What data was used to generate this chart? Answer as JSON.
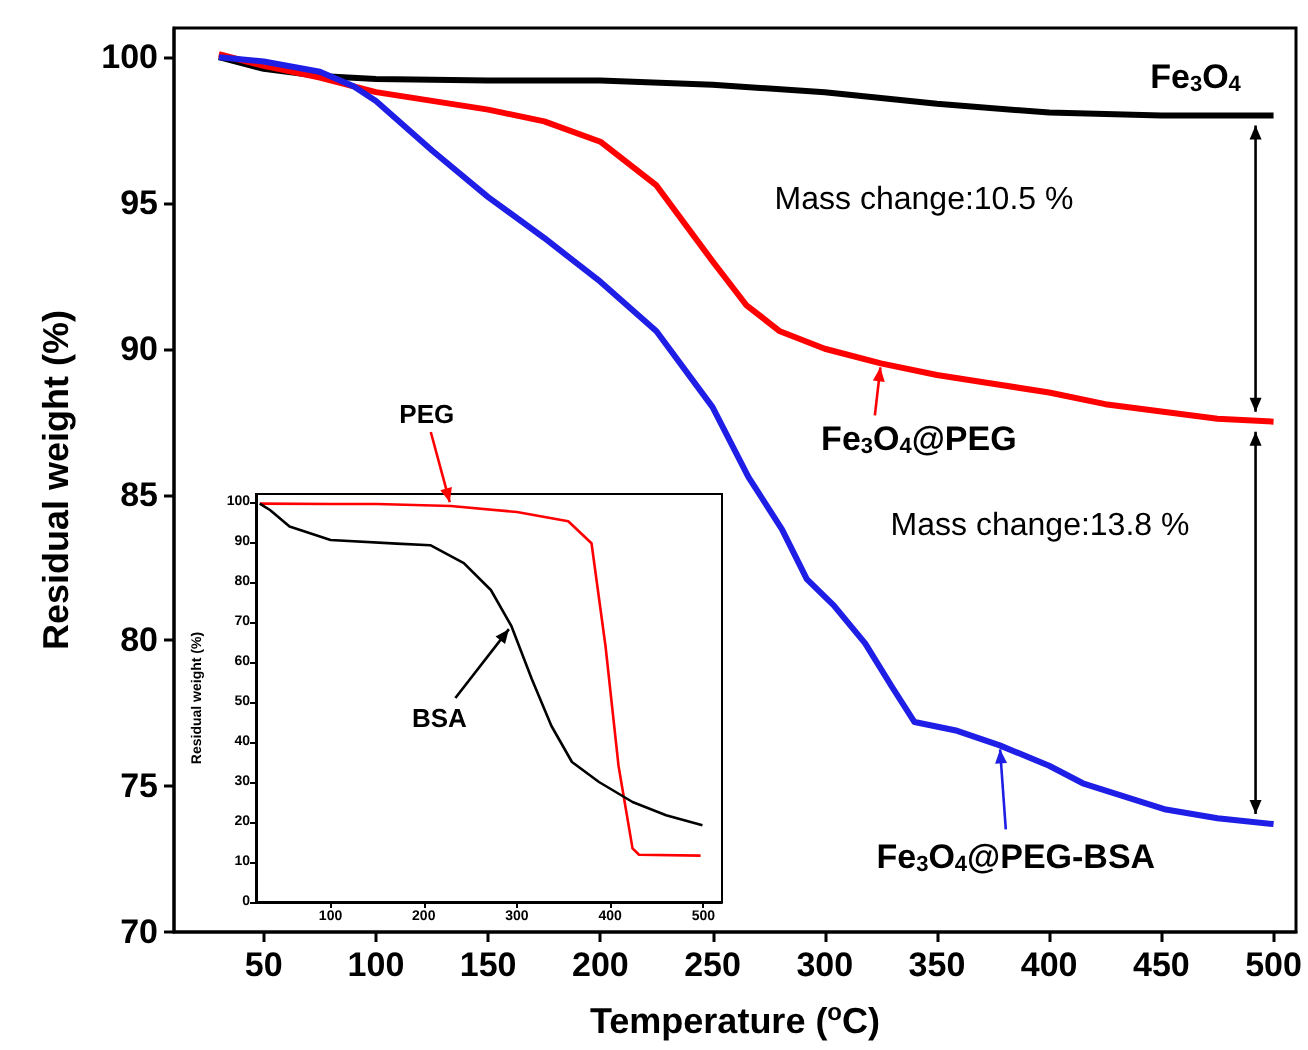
{
  "chart_data": [
    {
      "type": "line",
      "legend": "right",
      "xlabel": "Temperature ($^{o}$C)",
      "ylabel": "Residual weight (%)",
      "xlim": [
        10,
        510
      ],
      "xticks": [
        50,
        100,
        150,
        200,
        250,
        300,
        350,
        400,
        450,
        500
      ],
      "ylim": [
        70,
        101
      ],
      "yticks": [
        70,
        75,
        80,
        85,
        90,
        95,
        100
      ],
      "series": [
        {
          "name": "Fe$_{3}$O$_{4}$",
          "color": "#000000",
          "x": [
            30,
            50,
            75,
            100,
            150,
            200,
            250,
            300,
            350,
            400,
            450,
            500
          ],
          "values": [
            100,
            99.6,
            99.35,
            99.25,
            99.2,
            99.2,
            99.05,
            98.8,
            98.4,
            98.1,
            98.0,
            98.0
          ]
        },
        {
          "name": "Fe$_{3}$O$_{4}$@PEG",
          "color": "#ff0000",
          "x": [
            30,
            50,
            75,
            100,
            125,
            150,
            175,
            200,
            225,
            250,
            265,
            280,
            300,
            325,
            350,
            375,
            400,
            425,
            450,
            475,
            500
          ],
          "values": [
            100.1,
            99.7,
            99.3,
            98.8,
            98.5,
            98.2,
            97.8,
            97.1,
            95.6,
            93.0,
            91.5,
            90.6,
            90.0,
            89.5,
            89.1,
            88.8,
            88.5,
            88.1,
            87.85,
            87.6,
            87.5
          ]
        },
        {
          "name": "Fe$_{3}$O$_{4}$@PEG-BSA",
          "color": "#1e1ee6",
          "x": [
            30,
            50,
            75,
            90,
            100,
            125,
            150,
            175,
            200,
            225,
            250,
            266,
            281,
            292,
            304,
            318,
            330,
            340,
            359,
            378,
            400,
            415,
            452,
            475,
            500
          ],
          "values": [
            100,
            99.85,
            99.5,
            99.0,
            98.5,
            96.8,
            95.2,
            93.8,
            92.3,
            90.6,
            88.0,
            85.6,
            83.8,
            82.1,
            81.2,
            79.9,
            78.4,
            77.2,
            76.9,
            76.4,
            75.7,
            75.1,
            74.2,
            73.9,
            73.7
          ]
        }
      ],
      "annotations": [
        "Mass change:10.5 %",
        "Mass change:13.8 %"
      ]
    },
    {
      "type": "line",
      "ylabel": "Residual weight (%)",
      "xlim": [
        20,
        520
      ],
      "xticks": [
        100,
        200,
        300,
        400,
        500
      ],
      "ylim": [
        0,
        102
      ],
      "yticks": [
        0,
        10,
        20,
        30,
        40,
        50,
        60,
        70,
        80,
        90,
        100
      ],
      "series": [
        {
          "name": "PEG",
          "color": "#ff0000",
          "x": [
            24,
            100,
            150,
            229,
            300,
            355,
            380,
            395,
            409,
            424,
            431,
            497
          ],
          "values": [
            99.6,
            99.5,
            99.5,
            99,
            97.5,
            95.2,
            89.7,
            64,
            34,
            13.4,
            11.8,
            11.6
          ]
        },
        {
          "name": "BSA",
          "color": "#000000",
          "x": [
            24,
            35,
            56,
            100,
            171,
            207,
            243,
            272,
            294,
            316,
            337,
            359,
            388,
            424,
            460,
            499
          ],
          "values": [
            99.6,
            98,
            93.9,
            90.5,
            89.6,
            89.2,
            84.7,
            78,
            69,
            55.7,
            44,
            35,
            30,
            25,
            21.7,
            19.2
          ]
        }
      ]
    }
  ]
}
